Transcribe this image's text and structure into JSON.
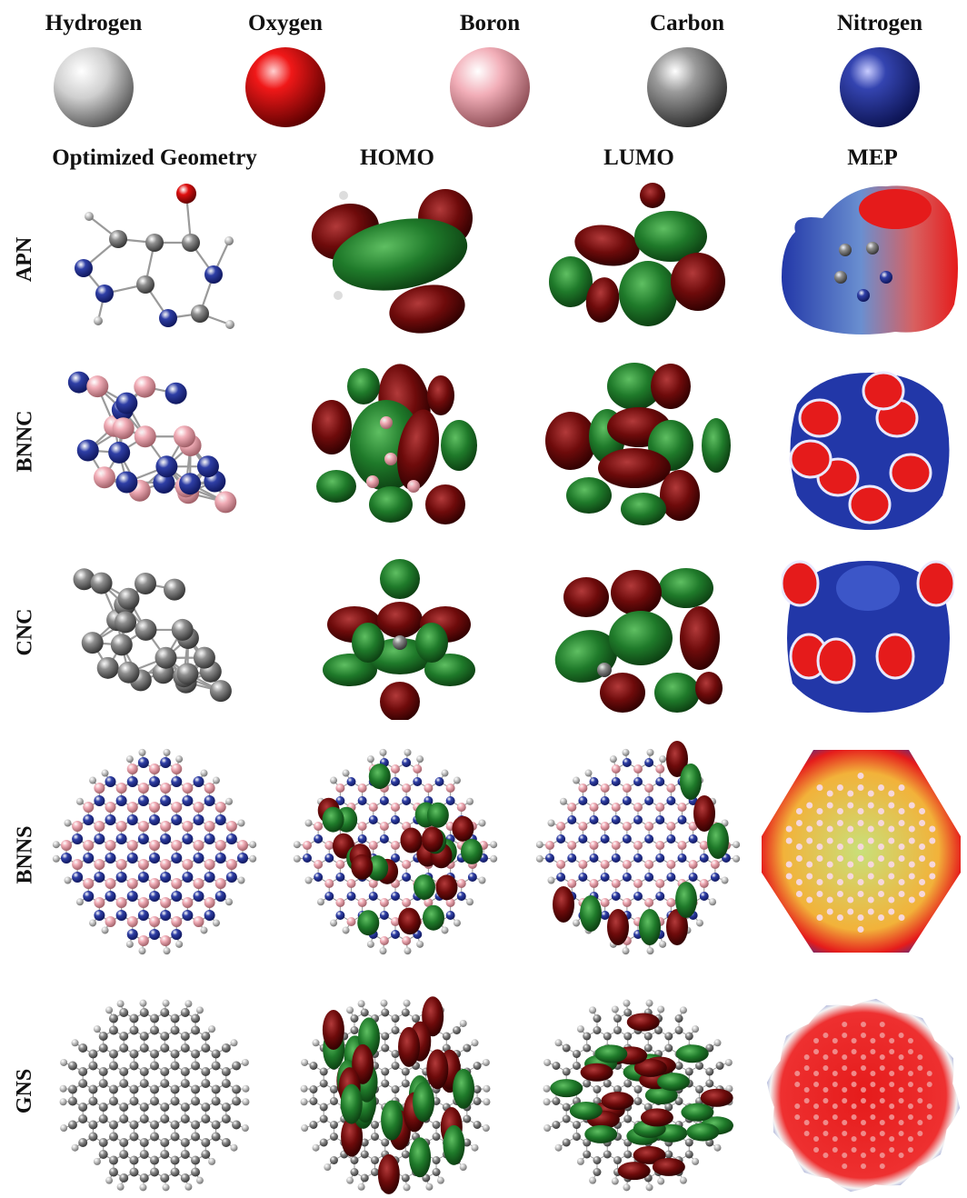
{
  "legend": {
    "items": [
      {
        "label": "Hydrogen",
        "color": "#cfcfcf"
      },
      {
        "label": "Oxygen",
        "color": "#e01010"
      },
      {
        "label": "Boron",
        "color": "#f2aeb8"
      },
      {
        "label": "Carbon",
        "color": "#8f8f8f"
      },
      {
        "label": "Nitrogen",
        "color": "#2f3fa6"
      }
    ]
  },
  "columns": {
    "geometry": "Optimized Geometry",
    "homo": "HOMO",
    "lumo": "LUMO",
    "mep": "MEP"
  },
  "rows": [
    {
      "label": "APN"
    },
    {
      "label": "BNNC"
    },
    {
      "label": "CNC"
    },
    {
      "label": "BNNS"
    },
    {
      "label": "GNS"
    }
  ],
  "colors": {
    "orbital_positive": "#1f7a2a",
    "orbital_negative": "#6e0b0b",
    "mep_negative": "#e51b1b",
    "mep_positive": "#2237a8",
    "mep_neutral": "#c9e07a"
  }
}
